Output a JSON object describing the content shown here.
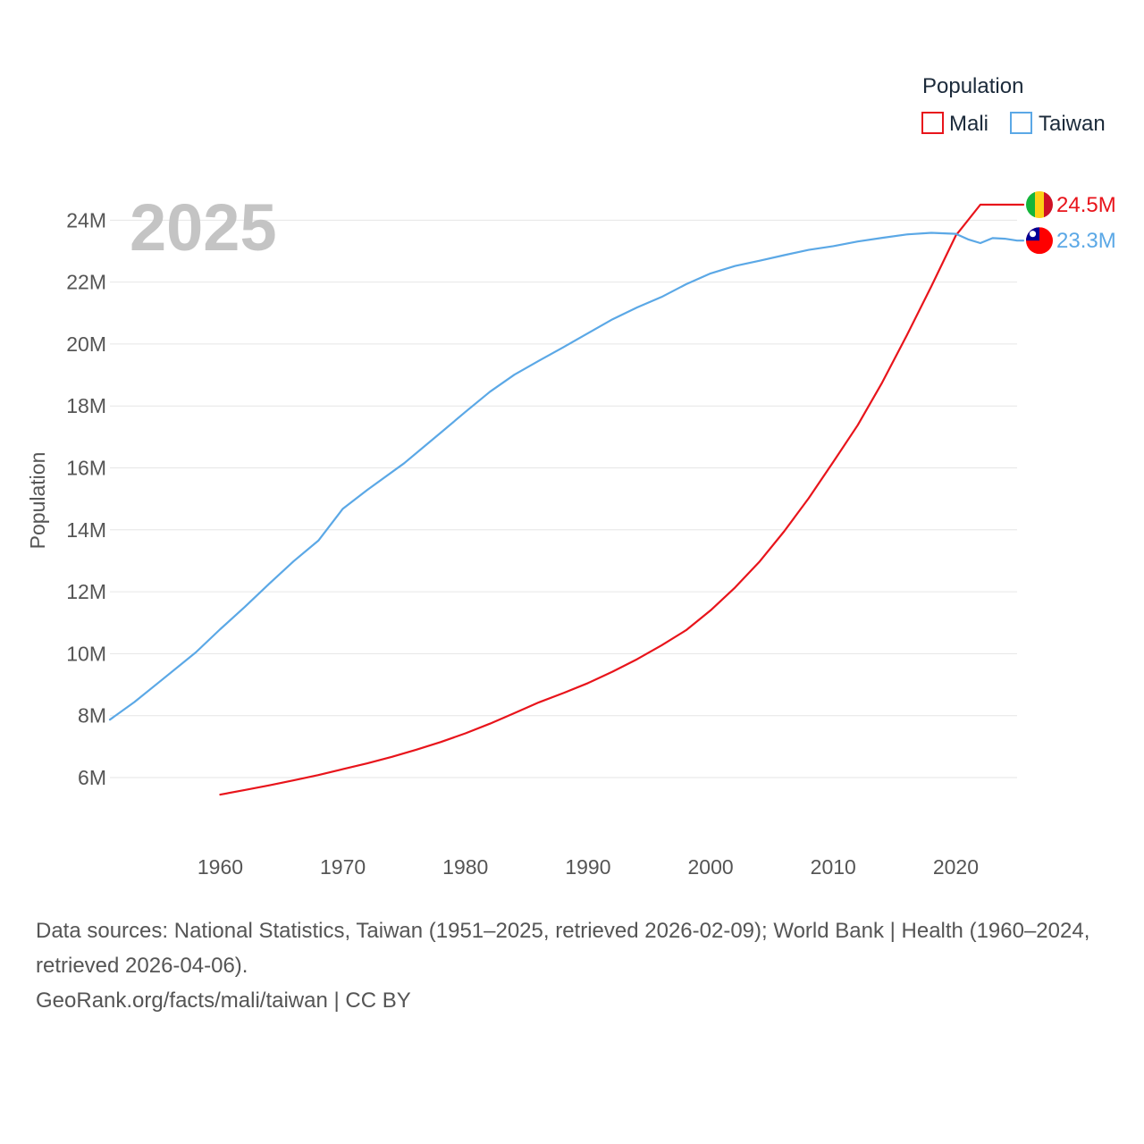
{
  "chart_data": {
    "type": "line",
    "title": "Population",
    "year_label": "2025",
    "ylabel": "Population",
    "xlabel": "",
    "x_ticks": [
      1960,
      1970,
      1980,
      1990,
      2000,
      2010,
      2020
    ],
    "xlim": [
      1951,
      2025
    ],
    "y_ticks": [
      6000000,
      8000000,
      10000000,
      12000000,
      14000000,
      16000000,
      18000000,
      20000000,
      22000000,
      24000000
    ],
    "y_tick_labels": [
      "6M",
      "8M",
      "10M",
      "12M",
      "14M",
      "16M",
      "18M",
      "20M",
      "22M",
      "24M"
    ],
    "ylim": [
      4500000,
      25500000
    ],
    "grid": true,
    "legend": {
      "title": "Population",
      "position": "top-right",
      "entries": [
        "Mali",
        "Taiwan"
      ]
    },
    "series": [
      {
        "name": "Mali",
        "color": "#e8141b",
        "end_label": "24.5M",
        "flag": "mali-flag",
        "points": [
          [
            1960,
            5.45
          ],
          [
            1962,
            5.6
          ],
          [
            1964,
            5.75
          ],
          [
            1966,
            5.91
          ],
          [
            1968,
            6.08
          ],
          [
            1970,
            6.27
          ],
          [
            1972,
            6.46
          ],
          [
            1974,
            6.67
          ],
          [
            1976,
            6.9
          ],
          [
            1978,
            7.15
          ],
          [
            1980,
            7.43
          ],
          [
            1982,
            7.74
          ],
          [
            1984,
            8.08
          ],
          [
            1986,
            8.43
          ],
          [
            1988,
            8.73
          ],
          [
            1990,
            9.05
          ],
          [
            1992,
            9.42
          ],
          [
            1994,
            9.82
          ],
          [
            1996,
            10.27
          ],
          [
            1998,
            10.76
          ],
          [
            2000,
            11.4
          ],
          [
            2002,
            12.14
          ],
          [
            2004,
            12.98
          ],
          [
            2006,
            13.95
          ],
          [
            2008,
            15.02
          ],
          [
            2010,
            16.19
          ],
          [
            2012,
            17.38
          ],
          [
            2014,
            18.76
          ],
          [
            2016,
            20.28
          ],
          [
            2018,
            21.86
          ],
          [
            2020,
            23.5
          ],
          [
            2022,
            24.5
          ]
        ]
      },
      {
        "name": "Taiwan",
        "color": "#5ba8e6",
        "end_label": "23.3M",
        "flag": "taiwan-flag",
        "points": [
          [
            1951,
            7.87
          ],
          [
            1953,
            8.44
          ],
          [
            1955,
            9.08
          ],
          [
            1958,
            10.04
          ],
          [
            1960,
            10.79
          ],
          [
            1962,
            11.51
          ],
          [
            1964,
            12.26
          ],
          [
            1966,
            12.99
          ],
          [
            1968,
            13.65
          ],
          [
            1970,
            14.68
          ],
          [
            1972,
            15.29
          ],
          [
            1975,
            16.15
          ],
          [
            1978,
            17.14
          ],
          [
            1980,
            17.81
          ],
          [
            1982,
            18.46
          ],
          [
            1984,
            19.01
          ],
          [
            1986,
            19.46
          ],
          [
            1988,
            19.9
          ],
          [
            1990,
            20.35
          ],
          [
            1992,
            20.8
          ],
          [
            1994,
            21.18
          ],
          [
            1996,
            21.52
          ],
          [
            1998,
            21.93
          ],
          [
            2000,
            22.28
          ],
          [
            2002,
            22.52
          ],
          [
            2004,
            22.69
          ],
          [
            2006,
            22.87
          ],
          [
            2008,
            23.04
          ],
          [
            2010,
            23.16
          ],
          [
            2012,
            23.31
          ],
          [
            2014,
            23.43
          ],
          [
            2016,
            23.54
          ],
          [
            2018,
            23.59
          ],
          [
            2020,
            23.56
          ],
          [
            2021,
            23.38
          ],
          [
            2022,
            23.26
          ],
          [
            2023,
            23.42
          ],
          [
            2024,
            23.4
          ],
          [
            2025,
            23.34
          ]
        ]
      }
    ]
  },
  "footer": {
    "sources": "Data sources: National Statistics, Taiwan (1951–2025, retrieved 2026-02-09); World Bank | Health (1960–2024, retrieved 2026-04-06).",
    "credit": "GeoRank.org/facts/mali/taiwan | CC BY"
  }
}
